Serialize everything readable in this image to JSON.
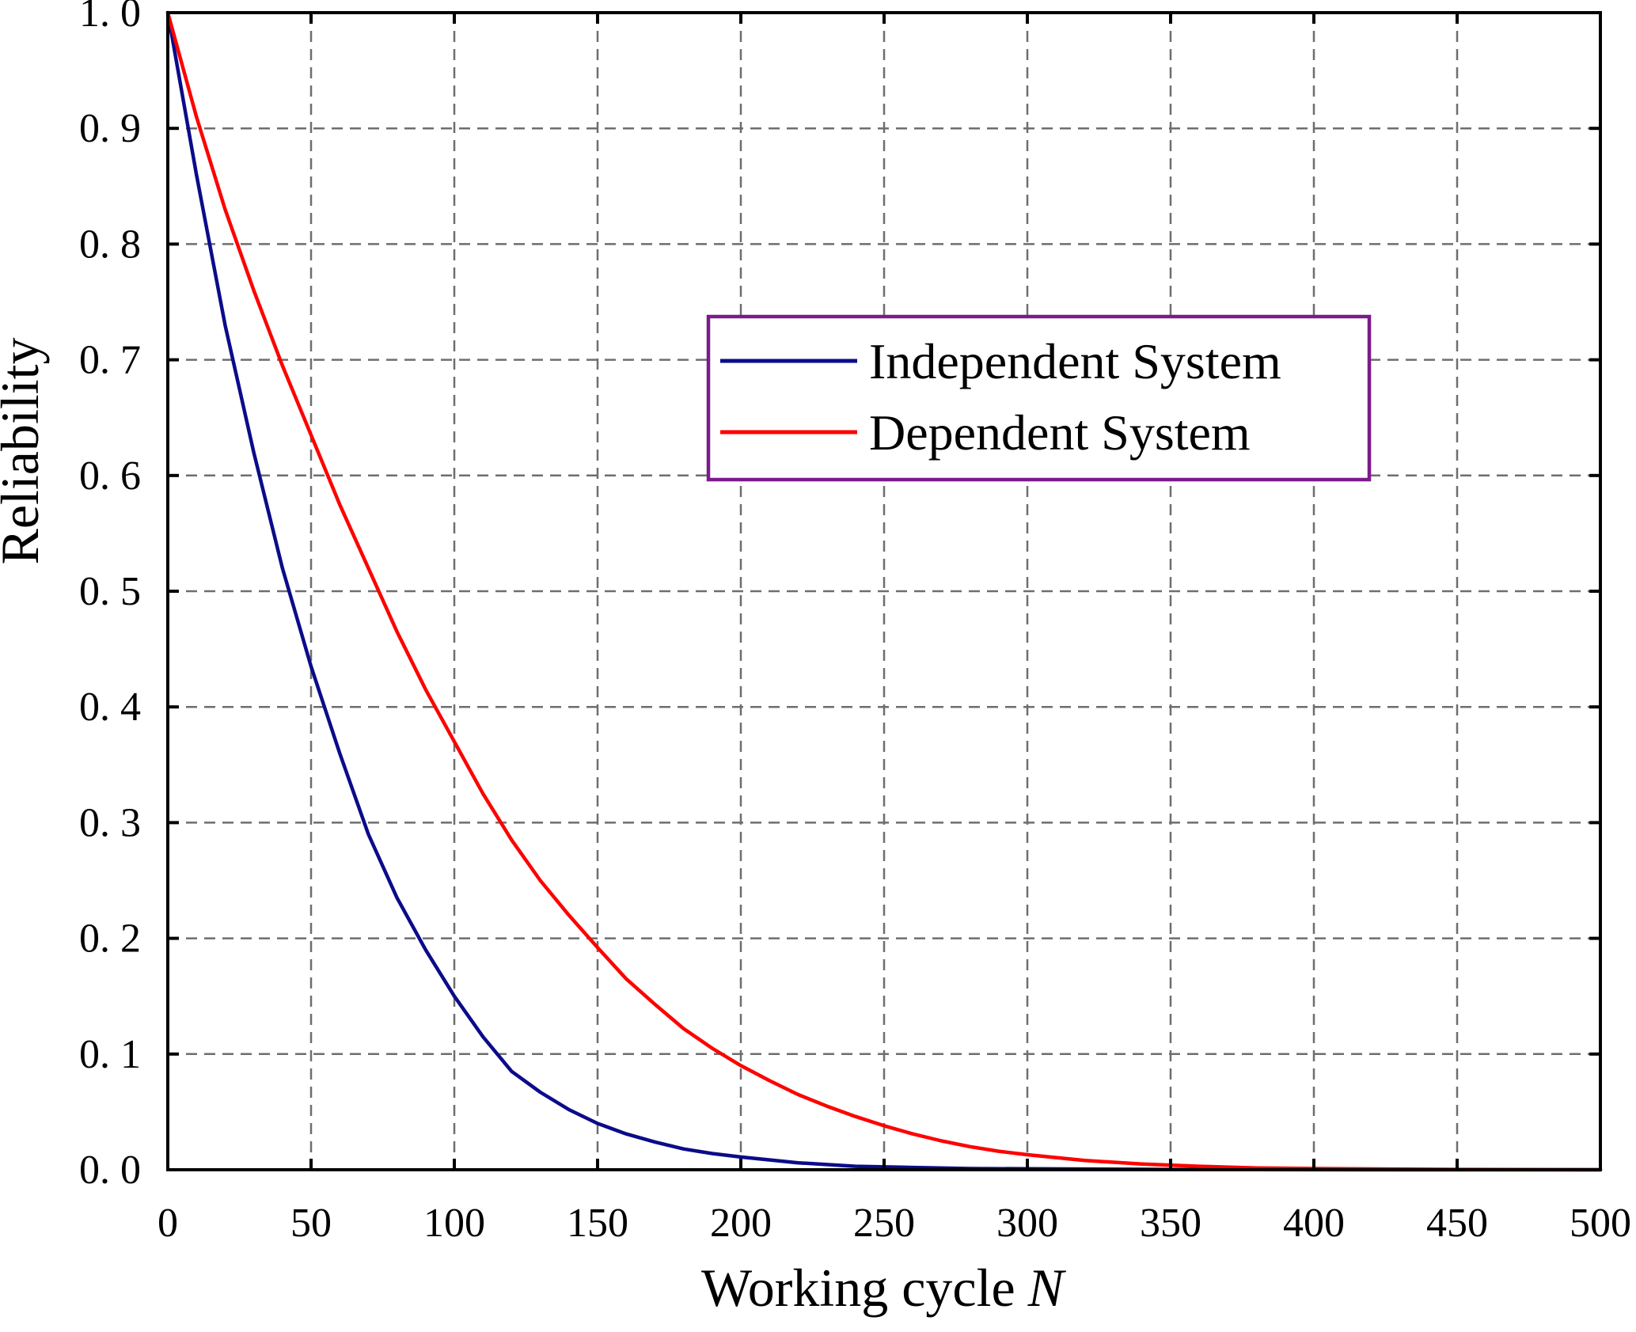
{
  "chart_data": {
    "type": "line",
    "title": "",
    "xlabel": "Working cycle",
    "xlabel_italic_suffix": "N",
    "ylabel": "Reliability",
    "xlim": [
      0,
      500
    ],
    "ylim": [
      0,
      1
    ],
    "x_ticks": [
      "0",
      "50",
      "100",
      "150",
      "200",
      "250",
      "300",
      "350",
      "400",
      "450",
      "500"
    ],
    "y_ticks": [
      "0. 0",
      "0. 1",
      "0. 2",
      "0. 3",
      "0. 4",
      "0. 5",
      "0. 6",
      "0. 7",
      "0. 8",
      "0. 9",
      "1. 0"
    ],
    "grid": true,
    "legend_position": "upper-right",
    "legend_border_color": "#7b1a8c",
    "series": [
      {
        "name": "Independent System",
        "color": "#0b0b8a",
        "x": [
          0,
          10,
          20,
          30,
          40,
          50,
          60,
          70,
          80,
          90,
          100,
          110,
          120,
          130,
          140,
          150,
          160,
          170,
          180,
          190,
          200,
          220,
          240,
          260,
          280,
          300,
          350,
          400,
          450,
          500
        ],
        "y": [
          1.0,
          0.86,
          0.73,
          0.62,
          0.52,
          0.435,
          0.36,
          0.29,
          0.235,
          0.19,
          0.15,
          0.115,
          0.085,
          0.067,
          0.052,
          0.04,
          0.031,
          0.024,
          0.018,
          0.014,
          0.011,
          0.006,
          0.003,
          0.002,
          0.001,
          0.0008,
          0.0003,
          0.0001,
          0.0,
          0.0
        ]
      },
      {
        "name": "Dependent System",
        "color": "#ff0000",
        "x": [
          0,
          10,
          20,
          30,
          40,
          50,
          60,
          70,
          80,
          90,
          100,
          110,
          120,
          130,
          140,
          150,
          160,
          170,
          180,
          190,
          200,
          210,
          220,
          230,
          240,
          250,
          260,
          270,
          280,
          290,
          300,
          320,
          340,
          360,
          380,
          400,
          450,
          500
        ],
        "y": [
          1.0,
          0.91,
          0.83,
          0.76,
          0.695,
          0.635,
          0.575,
          0.52,
          0.465,
          0.415,
          0.37,
          0.325,
          0.285,
          0.25,
          0.22,
          0.192,
          0.165,
          0.143,
          0.122,
          0.105,
          0.09,
          0.077,
          0.065,
          0.055,
          0.046,
          0.038,
          0.031,
          0.025,
          0.02,
          0.016,
          0.013,
          0.008,
          0.005,
          0.003,
          0.0015,
          0.001,
          0.0003,
          0.0
        ]
      }
    ]
  }
}
